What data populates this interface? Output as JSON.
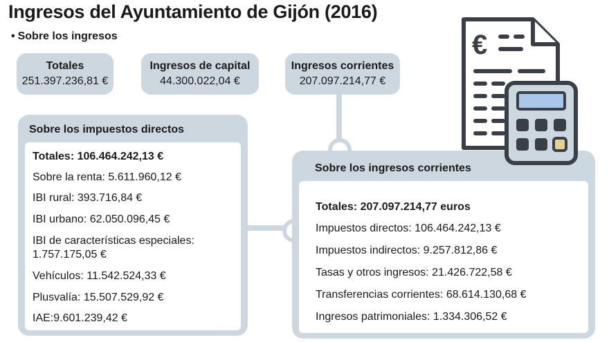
{
  "title": "Ingresos del Ayuntamiento de Gijón (2016)",
  "subtitle": "Sobre los ingresos",
  "summary": {
    "totales": {
      "label": "Totales",
      "value": "251.397.236,81 €"
    },
    "capital": {
      "label": "Ingresos de capital",
      "value": "44.300.022,04 €"
    },
    "corrientes": {
      "label": "Ingresos corrientes",
      "value": "207.097.214,77  €"
    }
  },
  "directos": {
    "heading": "Sobre los impuestos directos",
    "total": "Totales: 106.464.242,13 €",
    "items": [
      "Sobre la renta: 5.611.960,12 €",
      "IBI rural: 393.716,84 €",
      "IBI urbano: 62.050.096,45 €",
      "IBI de características especiales: 1.757.175,05 €",
      "Vehículos: 11.542.524,33 €",
      "Plusvalía: 15.507.529,92 €",
      "IAE:9.601.239,42 €"
    ]
  },
  "corrientes_detail": {
    "heading": "Sobre los ingresos corrientes",
    "total": "Totales: 207.097.214,77 euros",
    "items": [
      "Impuestos directos: 106.464.242,13 €",
      "Impuestos  indirectos: 9.257.812,86 €",
      "Tasas y otros ingresos: 21.426.722,58 €",
      "Transferencias corrientes: 68.614.130,68 €",
      "Ingresos patrimoniales: 1.334.306,52 €"
    ]
  },
  "illustration": {
    "icons": [
      "invoice-icon",
      "calculator-icon"
    ],
    "currency_symbol": "€",
    "colors": {
      "outline": "#3a3f47",
      "paper": "#ffffff",
      "body": "#ccd7df",
      "screen": "#a9c7e8",
      "key": "#3a3f47",
      "key_accent": "#e6d28a"
    }
  },
  "colors": {
    "panel": "#ccd7df",
    "text": "#1a1a1a",
    "background": "#ffffff"
  }
}
